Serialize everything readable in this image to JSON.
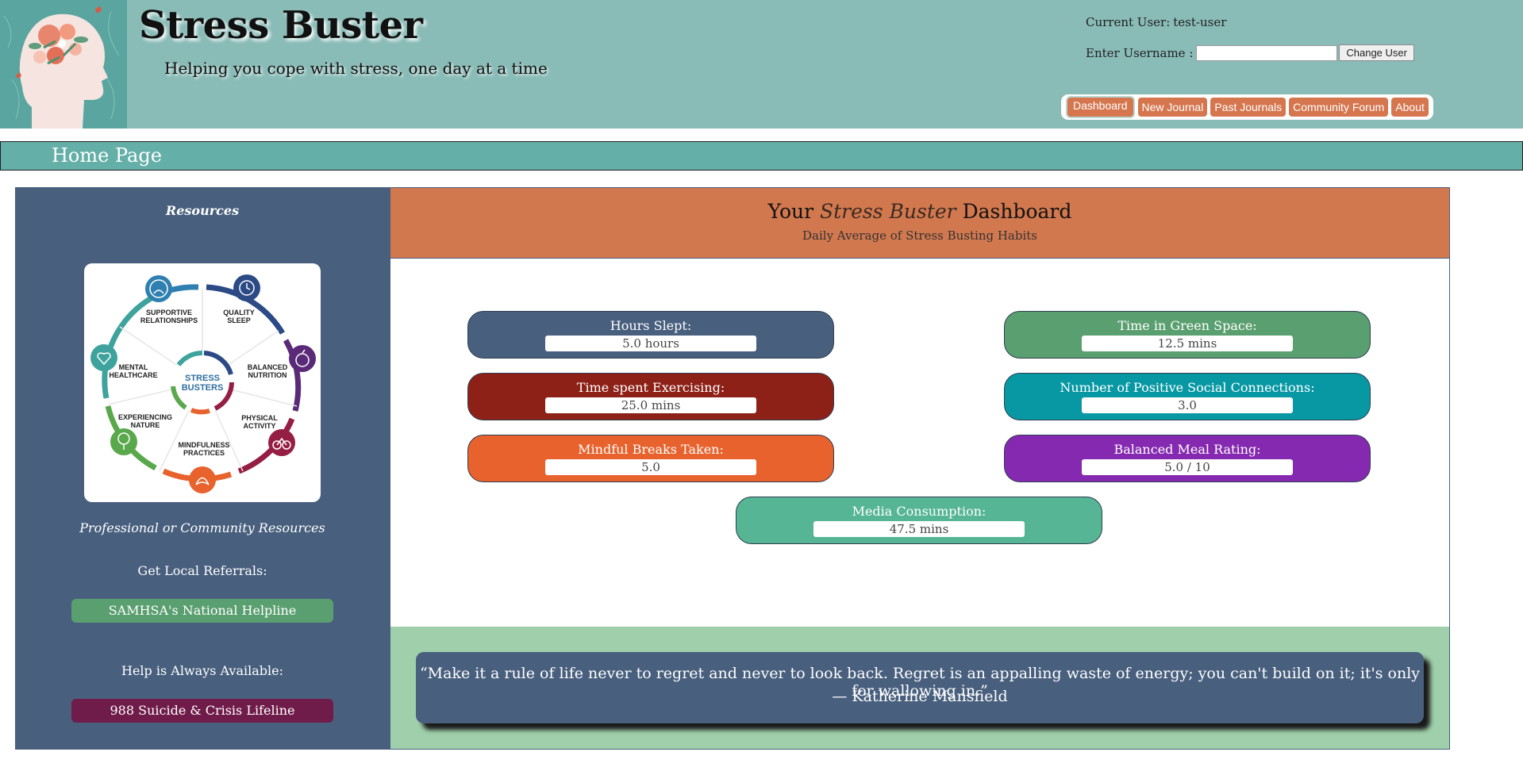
{
  "header": {
    "title": "Stress Buster",
    "subtitle": "Helping you cope with stress, one day at a time",
    "current_user_label": "Current User:",
    "current_user": "test-user",
    "username_label": "Enter Username :",
    "username_value": "",
    "change_user_label": "Change User",
    "nav": [
      "Dashboard",
      "New Journal",
      "Past Journals",
      "Community Forum",
      "About"
    ]
  },
  "page": {
    "title": "Home Page"
  },
  "sidebar": {
    "heading": "Resources",
    "wheel": {
      "center_line1": "STRESS",
      "center_line2": "BUSTERS",
      "segments": [
        {
          "line1": "SUPPORTIVE",
          "line2": "RELATIONSHIPS"
        },
        {
          "line1": "QUALITY",
          "line2": "SLEEP"
        },
        {
          "line1": "BALANCED",
          "line2": "NUTRITION"
        },
        {
          "line1": "PHYSICAL",
          "line2": "ACTIVITY"
        },
        {
          "line1": "MINDFULNESS",
          "line2": "PRACTICES"
        },
        {
          "line1": "EXPERIENCING",
          "line2": "NATURE"
        },
        {
          "line1": "MENTAL",
          "line2": "HEALTHCARE"
        }
      ]
    },
    "sub_heading": "Professional or Community Resources",
    "referrals_label": "Get Local Referrals:",
    "helpline_button": "SAMHSA's National Helpline",
    "always_label": "Help is Always Available:",
    "lifeline_button": "988 Suicide & Crisis Lifeline"
  },
  "dashboard": {
    "title_prefix": "Your",
    "title_em": "Stress Buster",
    "title_suffix": "Dashboard",
    "subtitle": "Daily Average of Stress Busting Habits",
    "metrics": [
      {
        "label": "Hours Slept:",
        "value": "5.0 hours",
        "color": "#485f7e"
      },
      {
        "label": "Time in Green Space:",
        "value": "12.5 mins",
        "color": "#5a9f70"
      },
      {
        "label": "Time spent Exercising:",
        "value": "25.0 mins",
        "color": "#8d2017"
      },
      {
        "label": "Number of Positive Social Connections:",
        "value": "3.0",
        "color": "#0798a4"
      },
      {
        "label": "Mindful Breaks Taken:",
        "value": "5.0",
        "color": "#e8622d"
      },
      {
        "label": "Balanced Meal Rating:",
        "value": "5.0 / 10",
        "color": "#8529b0"
      },
      {
        "label": "Media Consumption:",
        "value": "47.5 mins",
        "color": "#55b594"
      }
    ]
  },
  "quote": {
    "text": "“Make it a rule of life never to regret and never to look back. Regret is an appalling waste of energy; you can't build on it; it's only for wallowing in.”",
    "author": "— Katherine Mansfield"
  }
}
